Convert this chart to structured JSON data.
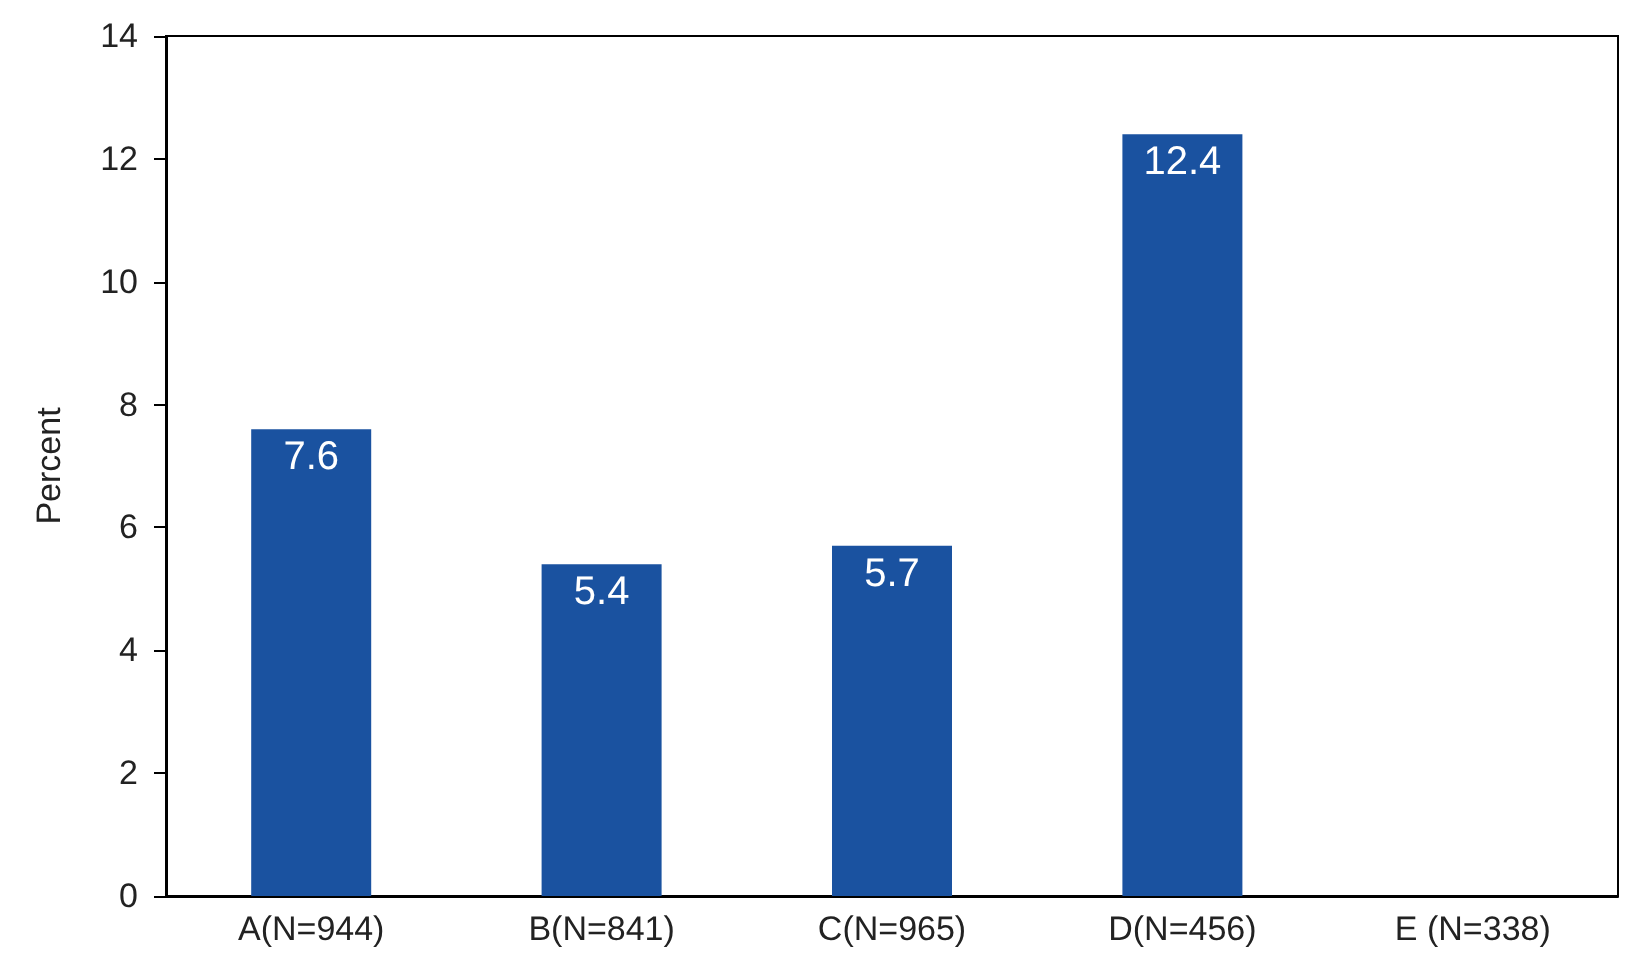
{
  "chart_data": {
    "type": "bar",
    "ylabel": "Percent",
    "categories": [
      "A(N=944)",
      "B(N=841)",
      "C(N=965)",
      "D(N=456)",
      "E (N=338)"
    ],
    "values": [
      7.6,
      5.4,
      5.7,
      12.4,
      null
    ],
    "value_labels": [
      "7.6",
      "5.4",
      "5.7",
      "12.4",
      null
    ],
    "color": "#1a52a0",
    "ylim": [
      0,
      14
    ],
    "yticks": [
      0,
      2,
      4,
      6,
      8,
      10,
      12,
      14
    ],
    "grid": false
  }
}
